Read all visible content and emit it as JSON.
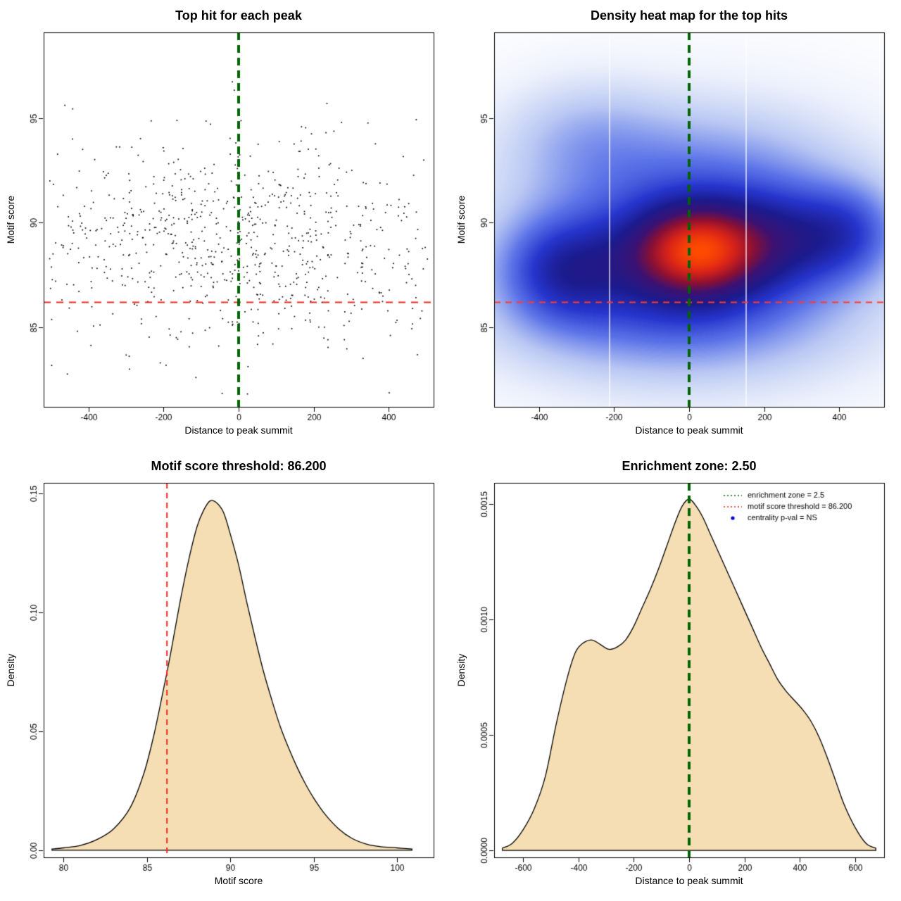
{
  "figure": {
    "background": "#ffffff"
  },
  "colors": {
    "enrichment_green": "#006400",
    "threshold_red": "#e8291c",
    "density_fill": "#f5deb3",
    "centrality_blue": "#0000e0",
    "point_black": "#000000"
  },
  "chart_data": [
    {
      "type": "scatter",
      "title": "Top hit for each peak",
      "xlabel": "Distance to peak summit",
      "ylabel": "Motif score",
      "xlim": [
        -520,
        520
      ],
      "ylim": [
        81.2,
        99.1
      ],
      "xticks": {
        "values": [
          -400,
          -200,
          0,
          200,
          400
        ],
        "labels": [
          "-400",
          "-200",
          "0",
          "200",
          "400"
        ]
      },
      "yticks": {
        "values": [
          85,
          90,
          95
        ],
        "labels": [
          "85",
          "90",
          "95"
        ]
      },
      "point_color": "#000000",
      "points_summary": {
        "seed": 71,
        "n": 780,
        "x_uniform_frac": 0.55,
        "x_range": [
          -505,
          505
        ],
        "x_gauss_sd": 200,
        "y_mean": 89.2,
        "y_sd": 2.5,
        "y_clip": [
          81.5,
          99.0
        ]
      },
      "vlines": [
        {
          "x": 0,
          "color": "#006400",
          "width": 4,
          "dash": [
            11,
            7
          ]
        }
      ],
      "hlines": [
        {
          "y": 86.2,
          "color": "#e8291c",
          "width": 2,
          "dash": [
            10,
            8
          ]
        }
      ]
    },
    {
      "type": "heatmap",
      "title": "Density heat map for the top hits",
      "xlabel": "Distance to peak summit",
      "ylabel": "Motif score",
      "xlim": [
        -520,
        520
      ],
      "ylim": [
        81.2,
        99.1
      ],
      "xticks": {
        "values": [
          -400,
          -200,
          0,
          200,
          400
        ],
        "labels": [
          "-400",
          "-200",
          "0",
          "200",
          "400"
        ]
      },
      "yticks": {
        "values": [
          85,
          90,
          95
        ],
        "labels": [
          "85",
          "90",
          "95"
        ]
      },
      "kernels": [
        {
          "x": 20,
          "y": 88.7,
          "sx": 115,
          "sy": 1.5,
          "w": 1.0
        },
        {
          "x": -40,
          "y": 88.3,
          "sx": 230,
          "sy": 2.2,
          "w": 0.55
        },
        {
          "x": -340,
          "y": 87.7,
          "sx": 110,
          "sy": 1.7,
          "w": 0.5
        },
        {
          "x": 265,
          "y": 89.2,
          "sx": 140,
          "sy": 1.7,
          "w": 0.5
        },
        {
          "x": 430,
          "y": 89.6,
          "sx": 90,
          "sy": 1.5,
          "w": 0.33
        },
        {
          "x": -270,
          "y": 93.9,
          "sx": 150,
          "sy": 1.9,
          "w": 0.2
        },
        {
          "x": 60,
          "y": 92.4,
          "sx": 230,
          "sy": 2.1,
          "w": 0.24
        },
        {
          "x": -30,
          "y": 85.2,
          "sx": 290,
          "sy": 1.8,
          "w": 0.26
        },
        {
          "x": 0,
          "y": 88.6,
          "sx": 430,
          "sy": 4.6,
          "w": 0.2
        }
      ],
      "color_stops": [
        [
          0,
          "#ffffff"
        ],
        [
          0.06,
          "#eef2fc"
        ],
        [
          0.18,
          "#b9c7f3"
        ],
        [
          0.32,
          "#5c74e8"
        ],
        [
          0.45,
          "#2635cd"
        ],
        [
          0.57,
          "#1b1b8e"
        ],
        [
          0.69,
          "#3c1172"
        ],
        [
          0.79,
          "#8c1033"
        ],
        [
          0.9,
          "#da2418"
        ],
        [
          1,
          "#ff4b00"
        ]
      ],
      "white_lines": [
        -212,
        152
      ],
      "vlines": [
        {
          "x": 0,
          "color": "#006400",
          "width": 4,
          "dash": [
            11,
            7
          ]
        }
      ],
      "hlines": [
        {
          "y": 86.2,
          "color": "#ff3b2a",
          "width": 2,
          "dash": [
            9,
            7
          ]
        }
      ]
    },
    {
      "type": "area",
      "title": "Motif score threshold: 86.200",
      "xlabel": "Motif score",
      "ylabel": "Density",
      "xlim": [
        78.8,
        102.2
      ],
      "ylim": [
        -0.003,
        0.1545
      ],
      "xticks": {
        "values": [
          80,
          85,
          90,
          95,
          100
        ],
        "labels": [
          "80",
          "85",
          "90",
          "95",
          "100"
        ]
      },
      "yticks": {
        "values": [
          0,
          0.05,
          0.1,
          0.15
        ],
        "labels": [
          "0.00",
          "0.05",
          "0.10",
          "0.15"
        ]
      },
      "fill": "#f5deb3",
      "curve": {
        "x": [
          79.3,
          80,
          81,
          82,
          83,
          84,
          84.8,
          85.4,
          86,
          86.4,
          87,
          87.5,
          88,
          88.4,
          88.8,
          89.2,
          89.6,
          90,
          90.5,
          91,
          91.5,
          92,
          92.5,
          93,
          93.5,
          94,
          94.5,
          95,
          95.7,
          96.5,
          97.3,
          98.2,
          99,
          100,
          100.9
        ],
        "y": [
          0.0005,
          0.001,
          0.002,
          0.0045,
          0.009,
          0.018,
          0.032,
          0.048,
          0.068,
          0.082,
          0.105,
          0.122,
          0.136,
          0.143,
          0.147,
          0.146,
          0.142,
          0.133,
          0.12,
          0.104,
          0.089,
          0.075,
          0.063,
          0.052,
          0.043,
          0.035,
          0.028,
          0.022,
          0.015,
          0.009,
          0.005,
          0.0025,
          0.0015,
          0.001,
          0.0005
        ]
      },
      "vlines": [
        {
          "x": 86.2,
          "color": "#e8291c",
          "width": 2,
          "dash": [
            8,
            6
          ]
        }
      ]
    },
    {
      "type": "area",
      "title": "Enrichment zone: 2.50",
      "xlabel": "Distance to peak summit",
      "ylabel": "Density",
      "xlim": [
        -705,
        705
      ],
      "ylim": [
        -3e-05,
        0.00159
      ],
      "xticks": {
        "values": [
          -600,
          -400,
          -200,
          0,
          200,
          400,
          600
        ],
        "labels": [
          "-600",
          "-400",
          "-200",
          "0",
          "200",
          "400",
          "600"
        ]
      },
      "yticks": {
        "values": [
          0,
          0.0005,
          0.001,
          0.0015
        ],
        "labels": [
          "0.0000",
          "0.0005",
          "0.0010",
          "0.0015"
        ]
      },
      "fill": "#f5deb3",
      "curve": {
        "x": [
          -675,
          -640,
          -600,
          -560,
          -520,
          -480,
          -440,
          -410,
          -380,
          -350,
          -320,
          -290,
          -260,
          -230,
          -200,
          -170,
          -140,
          -110,
          -80,
          -50,
          -25,
          0,
          25,
          50,
          80,
          110,
          140,
          170,
          200,
          230,
          260,
          290,
          320,
          350,
          380,
          410,
          440,
          470,
          500,
          530,
          560,
          600,
          640,
          675
        ],
        "y": [
          1e-05,
          3e-05,
          9e-05,
          0.00018,
          0.00032,
          0.00055,
          0.00075,
          0.00086,
          0.0009,
          0.00091,
          0.00089,
          0.00087,
          0.00088,
          0.00091,
          0.00097,
          0.00105,
          0.00113,
          0.00122,
          0.00132,
          0.00142,
          0.00149,
          0.00152,
          0.00149,
          0.00144,
          0.00136,
          0.00128,
          0.0012,
          0.00112,
          0.00104,
          0.00096,
          0.00088,
          0.00081,
          0.00074,
          0.00069,
          0.00065,
          0.00061,
          0.00056,
          0.00049,
          0.0004,
          0.0003,
          0.0002,
          0.0001,
          3e-05,
          1e-05
        ]
      },
      "vlines": [
        {
          "x": 0,
          "color": "#006400",
          "width": 4,
          "dash": [
            11,
            7
          ]
        }
      ],
      "legend": {
        "items": [
          {
            "type": "dotted-line",
            "color": "#006400",
            "label": "enrichment zone = 2.5"
          },
          {
            "type": "dotted-line",
            "color": "#e8291c",
            "label": "motif score threshold = 86.200"
          },
          {
            "type": "point",
            "color": "#0000e0",
            "label": "centrality p-val = NS"
          }
        ]
      }
    }
  ]
}
